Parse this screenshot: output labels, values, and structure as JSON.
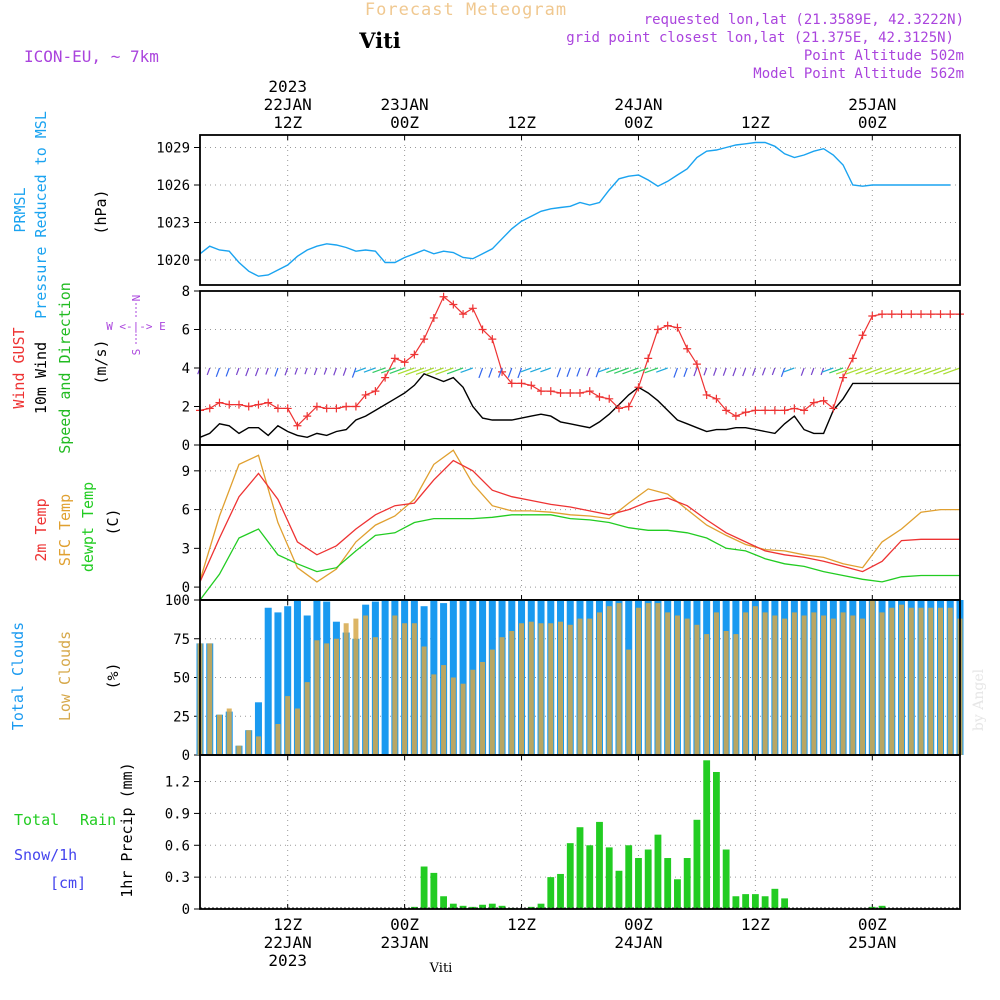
{
  "header": {
    "title": "Forecast Meteogram",
    "station": "Viti",
    "model": "ICON-EU, ~ 7km",
    "requested": "requested lon,lat (21.3589E, 42.3222N)",
    "grid_point": "grid point closest lon,lat (21.375E, 42.3125N)",
    "point_alt": "Point Altitude 502m",
    "model_alt": "Model Point Altitude 562m",
    "footer_station": "Viti",
    "watermark": "by Angel"
  },
  "time_axis": {
    "top_labels": [
      {
        "line1": "2023",
        "line2": "22JAN",
        "line3": "12Z",
        "hour": 12
      },
      {
        "line1": "",
        "line2": "23JAN",
        "line3": "00Z",
        "hour": 24
      },
      {
        "line1": "",
        "line2": "",
        "line3": "12Z",
        "hour": 36
      },
      {
        "line1": "",
        "line2": "24JAN",
        "line3": "00Z",
        "hour": 48
      },
      {
        "line1": "",
        "line2": "",
        "line3": "12Z",
        "hour": 60
      },
      {
        "line1": "",
        "line2": "25JAN",
        "line3": "00Z",
        "hour": 72
      }
    ],
    "bottom_labels": [
      {
        "line1": "12Z",
        "line2": "22JAN",
        "line3": "2023",
        "hour": 12
      },
      {
        "line1": "00Z",
        "line2": "23JAN",
        "line3": "",
        "hour": 24
      },
      {
        "line1": "12Z",
        "line2": "",
        "line3": "",
        "hour": 36
      },
      {
        "line1": "00Z",
        "line2": "24JAN",
        "line3": "",
        "hour": 48
      },
      {
        "line1": "12Z",
        "line2": "",
        "line3": "",
        "hour": 60
      },
      {
        "line1": "00Z",
        "line2": "25JAN",
        "line3": "",
        "hour": 72
      }
    ]
  },
  "colors": {
    "pressure": "#1aa3f0",
    "gust": "#ee3333",
    "wind": "#000000",
    "direction": "#22bb22",
    "temp": "#ee3333",
    "sfc": "#e0a030",
    "dewpt": "#22cc22",
    "total_clouds": "#1a9af0",
    "low_clouds": "#d6a84a",
    "rain": "#22cc22",
    "snow": "#4444ee",
    "purple": "#aa44dd",
    "title": "#f0c890"
  },
  "chart_data": [
    {
      "id": "pressure",
      "type": "line",
      "title": "Pressure Reduced to MSL",
      "label1": "PRMSL",
      "label2": "Pressure Reduced to MSL",
      "unit": "(hPa)",
      "ylim": [
        1018,
        1030
      ],
      "ticks": [
        1020,
        1023,
        1026,
        1029
      ],
      "xlim": [
        3,
        81
      ],
      "x": [
        3,
        4,
        5,
        6,
        7,
        8,
        9,
        10,
        11,
        12,
        13,
        14,
        15,
        16,
        17,
        18,
        19,
        20,
        21,
        22,
        23,
        24,
        25,
        26,
        27,
        28,
        29,
        30,
        31,
        32,
        33,
        34,
        35,
        36,
        37,
        38,
        39,
        40,
        41,
        42,
        43,
        44,
        45,
        46,
        47,
        48,
        49,
        50,
        51,
        52,
        53,
        54,
        55,
        56,
        57,
        58,
        59,
        60,
        61,
        62,
        63,
        64,
        65,
        66,
        67,
        68,
        69,
        70,
        71,
        72,
        73,
        74,
        75,
        76,
        77,
        78,
        79,
        80
      ],
      "y": [
        1020.5,
        1021.1,
        1020.8,
        1020.7,
        1019.8,
        1019.1,
        1018.7,
        1018.8,
        1019.2,
        1019.6,
        1020.3,
        1020.8,
        1021.1,
        1021.3,
        1021.2,
        1021.0,
        1020.7,
        1020.8,
        1020.7,
        1019.8,
        1019.8,
        1020.2,
        1020.5,
        1020.8,
        1020.5,
        1020.7,
        1020.6,
        1020.2,
        1020.1,
        1020.5,
        1020.9,
        1021.7,
        1022.5,
        1023.1,
        1023.5,
        1023.9,
        1024.1,
        1024.2,
        1024.3,
        1024.6,
        1024.4,
        1024.6,
        1025.6,
        1026.5,
        1026.7,
        1026.8,
        1026.4,
        1025.9,
        1026.3,
        1026.8,
        1027.3,
        1028.2,
        1028.7,
        1028.8,
        1029.0,
        1029.2,
        1029.3,
        1029.4,
        1029.4,
        1029.1,
        1028.5,
        1028.2,
        1028.4,
        1028.7,
        1028.9,
        1028.4,
        1027.6,
        1026.0,
        1025.9,
        1026.0,
        1026.0,
        1026.0,
        1026.0,
        1026.0,
        1026.0,
        1026.0,
        1026.0,
        1026.0
      ]
    },
    {
      "id": "wind",
      "type": "line",
      "label1": "Wind GUST",
      "label2": "10m Wind",
      "label3": "Speed and Direction",
      "unit": "(m/s)",
      "compass": [
        "N",
        "W <-|-> E",
        "S"
      ],
      "ylim": [
        0,
        8
      ],
      "ticks": [
        0,
        2,
        4,
        6,
        8
      ],
      "x": [
        3,
        4,
        5,
        6,
        7,
        8,
        9,
        10,
        11,
        12,
        13,
        14,
        15,
        16,
        17,
        18,
        19,
        20,
        21,
        22,
        23,
        24,
        25,
        26,
        27,
        28,
        29,
        30,
        31,
        32,
        33,
        34,
        35,
        36,
        37,
        38,
        39,
        40,
        41,
        42,
        43,
        44,
        45,
        46,
        47,
        48,
        49,
        50,
        51,
        52,
        53,
        54,
        55,
        56,
        57,
        58,
        59,
        60,
        61,
        62,
        63,
        64,
        65,
        66,
        67,
        68,
        69,
        70,
        71,
        72,
        73,
        74,
        75,
        76,
        77,
        78,
        79,
        80,
        81
      ],
      "gust": [
        1.8,
        1.9,
        2.2,
        2.1,
        2.1,
        2.0,
        2.1,
        2.2,
        1.9,
        1.9,
        1.0,
        1.5,
        2.0,
        1.9,
        1.9,
        2.0,
        2.0,
        2.6,
        2.8,
        3.5,
        4.5,
        4.3,
        4.7,
        5.5,
        6.6,
        7.7,
        7.3,
        6.8,
        7.1,
        6.0,
        5.5,
        3.8,
        3.2,
        3.2,
        3.1,
        2.8,
        2.8,
        2.7,
        2.7,
        2.7,
        2.8,
        2.5,
        2.4,
        1.9,
        2.0,
        3.0,
        4.5,
        6.0,
        6.2,
        6.1,
        5.0,
        4.2,
        2.6,
        2.4,
        1.8,
        1.5,
        1.7,
        1.8,
        1.8,
        1.8,
        1.8,
        1.9,
        1.8,
        2.2,
        2.3,
        1.9,
        3.5,
        4.5,
        5.7,
        6.7,
        6.8,
        6.8,
        6.8,
        6.8,
        6.8,
        6.8,
        6.8,
        6.8,
        6.8
      ],
      "wind": [
        0.4,
        0.6,
        1.1,
        1.0,
        0.6,
        0.9,
        0.9,
        0.5,
        1.0,
        0.7,
        0.5,
        0.4,
        0.6,
        0.5,
        0.7,
        0.8,
        1.3,
        1.5,
        1.8,
        2.1,
        2.4,
        2.7,
        3.1,
        3.7,
        3.5,
        3.3,
        3.5,
        3.0,
        2.0,
        1.4,
        1.3,
        1.3,
        1.3,
        1.4,
        1.5,
        1.6,
        1.5,
        1.2,
        1.1,
        1.0,
        0.9,
        1.2,
        1.6,
        2.1,
        2.6,
        3.0,
        2.7,
        2.3,
        1.8,
        1.3,
        1.1,
        0.9,
        0.7,
        0.8,
        0.8,
        0.9,
        0.9,
        0.8,
        0.7,
        0.6,
        1.1,
        1.5,
        0.8,
        0.6,
        0.6,
        1.8,
        2.4,
        3.2,
        3.2,
        3.2,
        3.2,
        3.2,
        3.2,
        3.2,
        3.2,
        3.2,
        3.2,
        3.2,
        3.2
      ]
    },
    {
      "id": "temp",
      "type": "line",
      "label1": "2m Temp",
      "label2": "SFC Temp",
      "label3": "dewpt Temp",
      "unit": "(C)",
      "ylim": [
        -1,
        11
      ],
      "ticks": [
        0,
        3,
        6,
        9
      ],
      "x": [
        3,
        5,
        7,
        9,
        11,
        13,
        15,
        17,
        19,
        21,
        23,
        25,
        27,
        29,
        31,
        33,
        35,
        37,
        39,
        41,
        43,
        45,
        47,
        49,
        51,
        53,
        55,
        57,
        59,
        61,
        63,
        65,
        67,
        69,
        71,
        73,
        75,
        77,
        79,
        81
      ],
      "t2m": [
        0.4,
        3.8,
        7.0,
        8.8,
        6.8,
        3.5,
        2.5,
        3.2,
        4.5,
        5.6,
        6.3,
        6.5,
        8.3,
        9.8,
        9.0,
        7.5,
        7.0,
        6.7,
        6.4,
        6.2,
        5.9,
        5.6,
        6.0,
        6.6,
        6.9,
        6.3,
        5.2,
        4.2,
        3.5,
        2.8,
        2.5,
        2.3,
        2.0,
        1.6,
        1.2,
        2.0,
        3.6,
        3.7,
        3.7,
        3.7
      ],
      "sfc": [
        0.5,
        5.5,
        9.5,
        10.2,
        5.0,
        1.5,
        0.4,
        1.4,
        3.5,
        4.8,
        5.5,
        6.8,
        9.5,
        10.6,
        8.0,
        6.3,
        5.9,
        5.9,
        5.8,
        5.6,
        5.5,
        5.3,
        6.5,
        7.6,
        7.2,
        6.0,
        4.8,
        4.0,
        3.3,
        2.9,
        2.8,
        2.5,
        2.3,
        1.8,
        1.5,
        3.5,
        4.5,
        5.8,
        6.0,
        6.0
      ],
      "dewpt": [
        -1.0,
        1.0,
        3.8,
        4.5,
        2.5,
        1.8,
        1.2,
        1.5,
        2.8,
        4.0,
        4.2,
        5.0,
        5.3,
        5.3,
        5.3,
        5.4,
        5.6,
        5.6,
        5.6,
        5.3,
        5.2,
        5.0,
        4.6,
        4.4,
        4.4,
        4.2,
        3.8,
        3.0,
        2.8,
        2.2,
        1.8,
        1.6,
        1.2,
        0.9,
        0.6,
        0.4,
        0.8,
        0.9,
        0.9,
        0.9
      ]
    },
    {
      "id": "clouds",
      "type": "bar",
      "label1": "Total Clouds",
      "label2": "Low Clouds",
      "unit": "(%)",
      "ylim": [
        0,
        100
      ],
      "ticks": [
        0,
        25,
        50,
        75,
        100
      ],
      "x": [
        3,
        4,
        5,
        6,
        7,
        8,
        9,
        10,
        11,
        12,
        13,
        14,
        15,
        16,
        17,
        18,
        19,
        20,
        21,
        22,
        23,
        24,
        25,
        26,
        27,
        28,
        29,
        30,
        31,
        32,
        33,
        34,
        35,
        36,
        37,
        38,
        39,
        40,
        41,
        42,
        43,
        44,
        45,
        46,
        47,
        48,
        49,
        50,
        51,
        52,
        53,
        54,
        55,
        56,
        57,
        58,
        59,
        60,
        61,
        62,
        63,
        64,
        65,
        66,
        67,
        68,
        69,
        70,
        71,
        72,
        73,
        74,
        75,
        76,
        77,
        78,
        79,
        80,
        81
      ],
      "total": [
        72,
        72,
        26,
        28,
        6,
        16,
        34,
        95,
        92,
        96,
        100,
        90,
        100,
        99,
        86,
        79,
        75,
        97,
        99,
        100,
        100,
        100,
        100,
        96,
        100,
        98,
        100,
        100,
        100,
        100,
        100,
        100,
        100,
        100,
        100,
        100,
        100,
        100,
        100,
        100,
        100,
        100,
        100,
        100,
        100,
        100,
        100,
        100,
        100,
        100,
        100,
        100,
        100,
        100,
        100,
        100,
        100,
        100,
        100,
        100,
        100,
        100,
        100,
        100,
        100,
        100,
        100,
        100,
        100,
        100,
        100,
        100,
        100,
        100,
        100,
        100,
        100,
        100,
        100
      ],
      "low": [
        72,
        72,
        26,
        30,
        6,
        16,
        12,
        0,
        20,
        38,
        30,
        47,
        74,
        72,
        75,
        85,
        88,
        90,
        76,
        0,
        90,
        85,
        85,
        70,
        52,
        58,
        50,
        46,
        55,
        60,
        68,
        76,
        80,
        85,
        86,
        85,
        85,
        86,
        84,
        88,
        88,
        92,
        96,
        98,
        68,
        95,
        98,
        98,
        92,
        90,
        88,
        84,
        78,
        92,
        80,
        78,
        92,
        96,
        92,
        90,
        88,
        92,
        90,
        92,
        90,
        88,
        92,
        90,
        88,
        100,
        92,
        95,
        97,
        95,
        95,
        95,
        95,
        95,
        88
      ],
      "pattern_note": ""
    },
    {
      "id": "precip",
      "type": "bar",
      "label1": "Total",
      "label1b": "Rain",
      "label2": "Snow/1h",
      "label3": "[cm]",
      "unit": "1hr Precip (mm)",
      "ylim": [
        0,
        1.45
      ],
      "ticks": [
        0,
        0.3,
        0.6,
        0.9,
        1.2
      ],
      "tick_labels": [
        "0",
        "0.3",
        "0.6",
        "0.9",
        "1.2"
      ],
      "x": [
        25,
        26,
        27,
        28,
        29,
        30,
        31,
        32,
        33,
        34,
        35,
        36,
        37,
        38,
        39,
        40,
        41,
        42,
        43,
        44,
        45,
        46,
        47,
        48,
        49,
        50,
        51,
        52,
        53,
        54,
        55,
        56,
        57,
        58,
        59,
        60,
        61,
        62,
        63,
        64,
        65,
        66,
        67,
        68,
        69,
        70,
        71,
        72,
        73
      ],
      "rain": [
        0.02,
        0.4,
        0.34,
        0.12,
        0.05,
        0.03,
        0.02,
        0.04,
        0.05,
        0.03,
        0.01,
        0.0,
        0.02,
        0.05,
        0.3,
        0.33,
        0.62,
        0.77,
        0.6,
        0.82,
        0.58,
        0.36,
        0.6,
        0.48,
        0.56,
        0.7,
        0.48,
        0.28,
        0.48,
        0.84,
        1.4,
        1.29,
        0.56,
        0.12,
        0.14,
        0.14,
        0.12,
        0.19,
        0.1,
        0.0,
        0.0,
        0.0,
        0.0,
        0.0,
        0.0,
        0.0,
        0.0,
        0.02,
        0.03
      ]
    }
  ]
}
